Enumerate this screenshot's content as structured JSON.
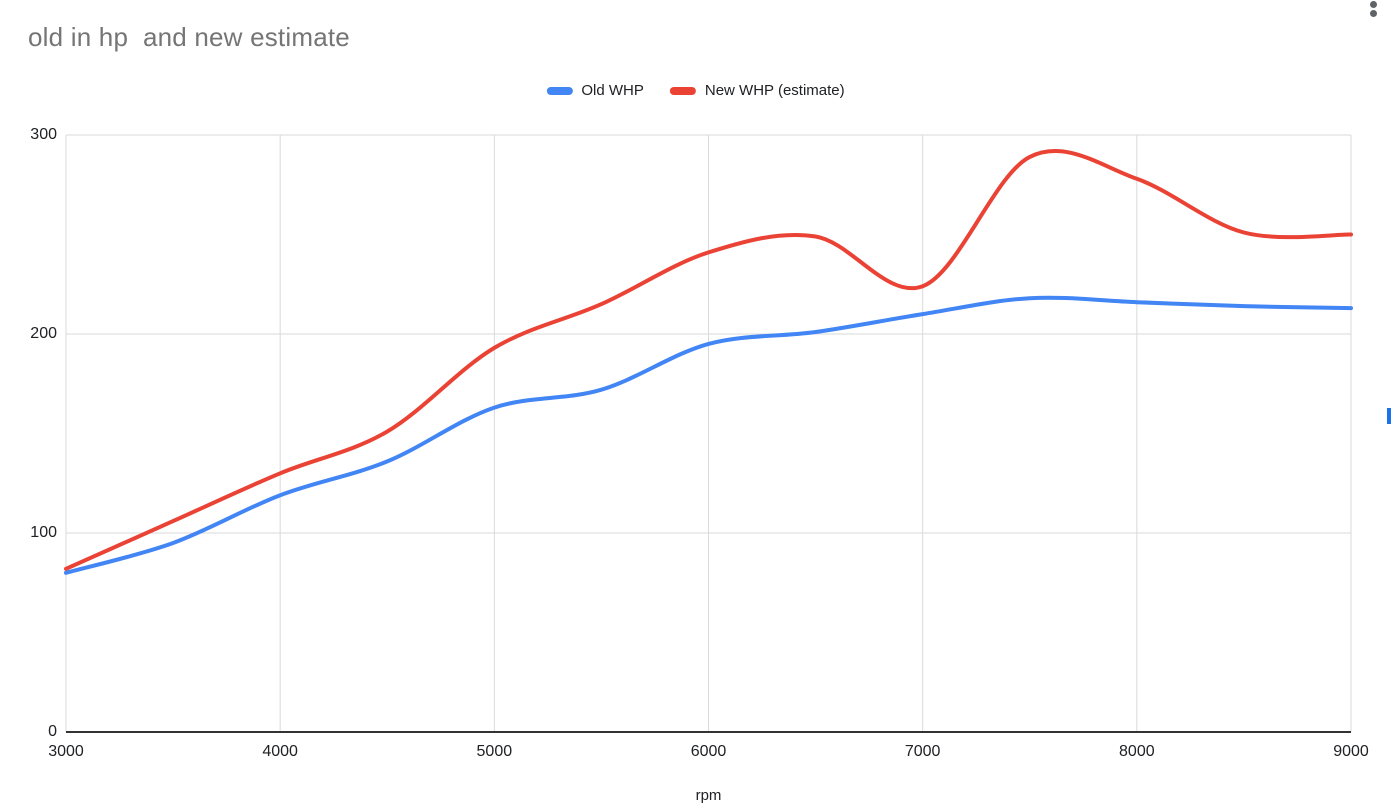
{
  "chart_data": {
    "type": "line",
    "smooth": true,
    "title": "old in hp  and new estimate",
    "xlabel": "rpm",
    "ylabel": "",
    "x": [
      3000,
      3500,
      4000,
      4500,
      5000,
      5500,
      6000,
      6500,
      7000,
      7500,
      8000,
      8500,
      9000
    ],
    "series": [
      {
        "name": "Old WHP",
        "color": "#4285f4",
        "values": [
          80,
          95,
          119,
          136,
          163,
          172,
          195,
          201,
          210,
          218,
          216,
          214,
          213
        ]
      },
      {
        "name": "New WHP (estimate)",
        "color": "#ea4335",
        "values": [
          82,
          106,
          130,
          151,
          193,
          215,
          241,
          249,
          224,
          289,
          278,
          251,
          250
        ]
      }
    ],
    "xlim": [
      3000,
      9000
    ],
    "ylim": [
      0,
      300
    ],
    "x_ticks": [
      3000,
      4000,
      5000,
      6000,
      7000,
      8000,
      9000
    ],
    "y_ticks": [
      0,
      100,
      200,
      300
    ],
    "grid": true,
    "legend_position": "top",
    "line_width": 4,
    "colors": {
      "grid": "#dadada",
      "axis_line": "#333333",
      "tick_label": "#202124",
      "title": "#757575"
    }
  },
  "window": {
    "more_options_icon": "kebab-vertical",
    "scrollbar_color": "#1a73e8"
  }
}
